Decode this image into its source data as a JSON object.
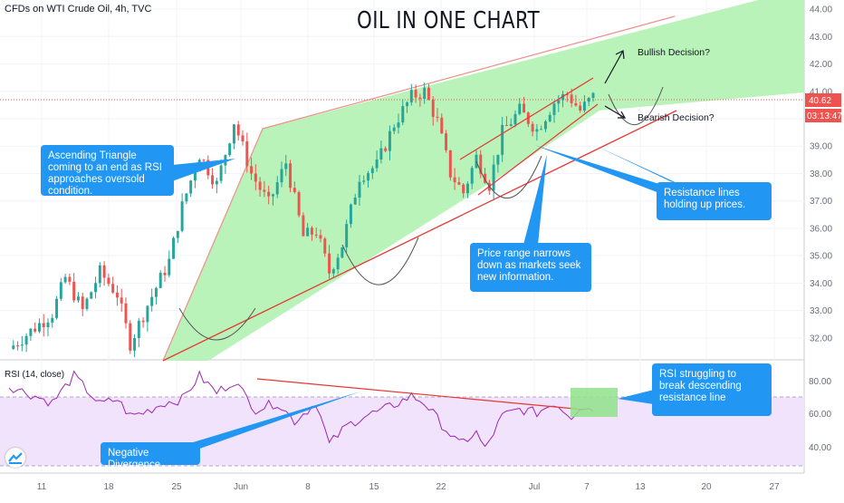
{
  "header": {
    "symbol_line": "CFDs on WTI Crude Oil, 4h, TVC",
    "chart_title": "OIL IN ONE CHART",
    "rsi_label": "RSI (14, close)"
  },
  "colors": {
    "up": "#26a69a",
    "down": "#ef5350",
    "triangle_fill": "#b6f2b5",
    "rsi_line": "#9c27b0",
    "rsi_band": "#f1e3fb",
    "red_line": "#e53935",
    "callout": "#2196f3",
    "price_badge": "#ef5350"
  },
  "annotations": {
    "ascending_triangle": "Ascending Triangle coming to an end as RSI approaches oversold condition.",
    "price_range": "Price range narrows down as markets seek new information.",
    "resistance_lines": "Resistance lines holding up prices.",
    "rsi_struggling": "RSI struggling to break descending resistance line",
    "negative_divergence": "Negative Divergence",
    "bullish": "Bullish Decision?",
    "bearish": "Bearish Decision?"
  },
  "price_axis": {
    "last_price": "40.62",
    "countdown": "03:13:47"
  },
  "rsi_axis_labels": [
    "80.00",
    "60.00",
    "40.00"
  ],
  "chart_data": {
    "type": "candlestick",
    "title": "OIL IN ONE CHART",
    "symbol": "CFDs on WTI Crude Oil, 4h, TVC",
    "y_ticks": [
      44,
      43,
      42,
      41,
      40,
      39,
      38,
      37,
      36,
      35,
      34,
      33,
      32
    ],
    "ylim": [
      31.5,
      44.2
    ],
    "x_ticks": [
      "11",
      "18",
      "25",
      "Jun",
      "8",
      "15",
      "22",
      "Jul",
      "7",
      "13",
      "20",
      "27"
    ],
    "last_price": 40.62,
    "rsi": {
      "label": "RSI (14, close)",
      "ylim": [
        25,
        90
      ],
      "band": [
        30,
        70
      ],
      "ticks": [
        80,
        60,
        40
      ]
    },
    "price_path": [
      [
        0,
        31.6
      ],
      [
        10,
        32.9
      ],
      [
        13,
        34.2
      ],
      [
        17,
        33.0
      ],
      [
        21,
        34.4
      ],
      [
        25,
        33.6
      ],
      [
        28,
        31.8
      ],
      [
        32,
        33.2
      ],
      [
        37,
        34.8
      ],
      [
        40,
        36.8
      ],
      [
        44,
        38.7
      ],
      [
        48,
        37.6
      ],
      [
        52,
        39.9
      ],
      [
        56,
        38.0
      ],
      [
        60,
        36.9
      ],
      [
        64,
        38.4
      ],
      [
        68,
        35.7
      ],
      [
        71,
        35.9
      ],
      [
        74,
        34.4
      ],
      [
        77,
        35.4
      ],
      [
        81,
        37.9
      ],
      [
        85,
        38.3
      ],
      [
        89,
        39.8
      ],
      [
        93,
        40.8
      ],
      [
        96,
        41.0
      ],
      [
        99,
        39.9
      ],
      [
        102,
        38.0
      ],
      [
        105,
        37.3
      ],
      [
        108,
        38.6
      ],
      [
        111,
        37.6
      ],
      [
        114,
        39.5
      ],
      [
        118,
        40.3
      ],
      [
        122,
        39.6
      ],
      [
        126,
        40.6
      ],
      [
        129,
        40.9
      ],
      [
        132,
        40.3
      ],
      [
        135,
        40.8
      ]
    ],
    "rsi_path": [
      [
        0,
        76
      ],
      [
        10,
        66
      ],
      [
        15,
        82
      ],
      [
        21,
        65
      ],
      [
        25,
        68
      ],
      [
        28,
        58
      ],
      [
        31,
        60
      ],
      [
        36,
        66
      ],
      [
        40,
        68
      ],
      [
        44,
        82
      ],
      [
        48,
        72
      ],
      [
        52,
        79
      ],
      [
        57,
        62
      ],
      [
        62,
        66
      ],
      [
        66,
        55
      ],
      [
        71,
        66
      ],
      [
        74,
        41
      ],
      [
        78,
        52
      ],
      [
        82,
        58
      ],
      [
        86,
        61
      ],
      [
        90,
        66
      ],
      [
        93,
        70
      ],
      [
        96,
        66
      ],
      [
        100,
        53
      ],
      [
        104,
        41
      ],
      [
        108,
        48
      ],
      [
        110,
        38
      ],
      [
        114,
        58
      ],
      [
        118,
        62
      ],
      [
        122,
        60
      ],
      [
        126,
        66
      ],
      [
        130,
        58
      ],
      [
        132,
        64
      ],
      [
        135,
        62
      ]
    ]
  }
}
